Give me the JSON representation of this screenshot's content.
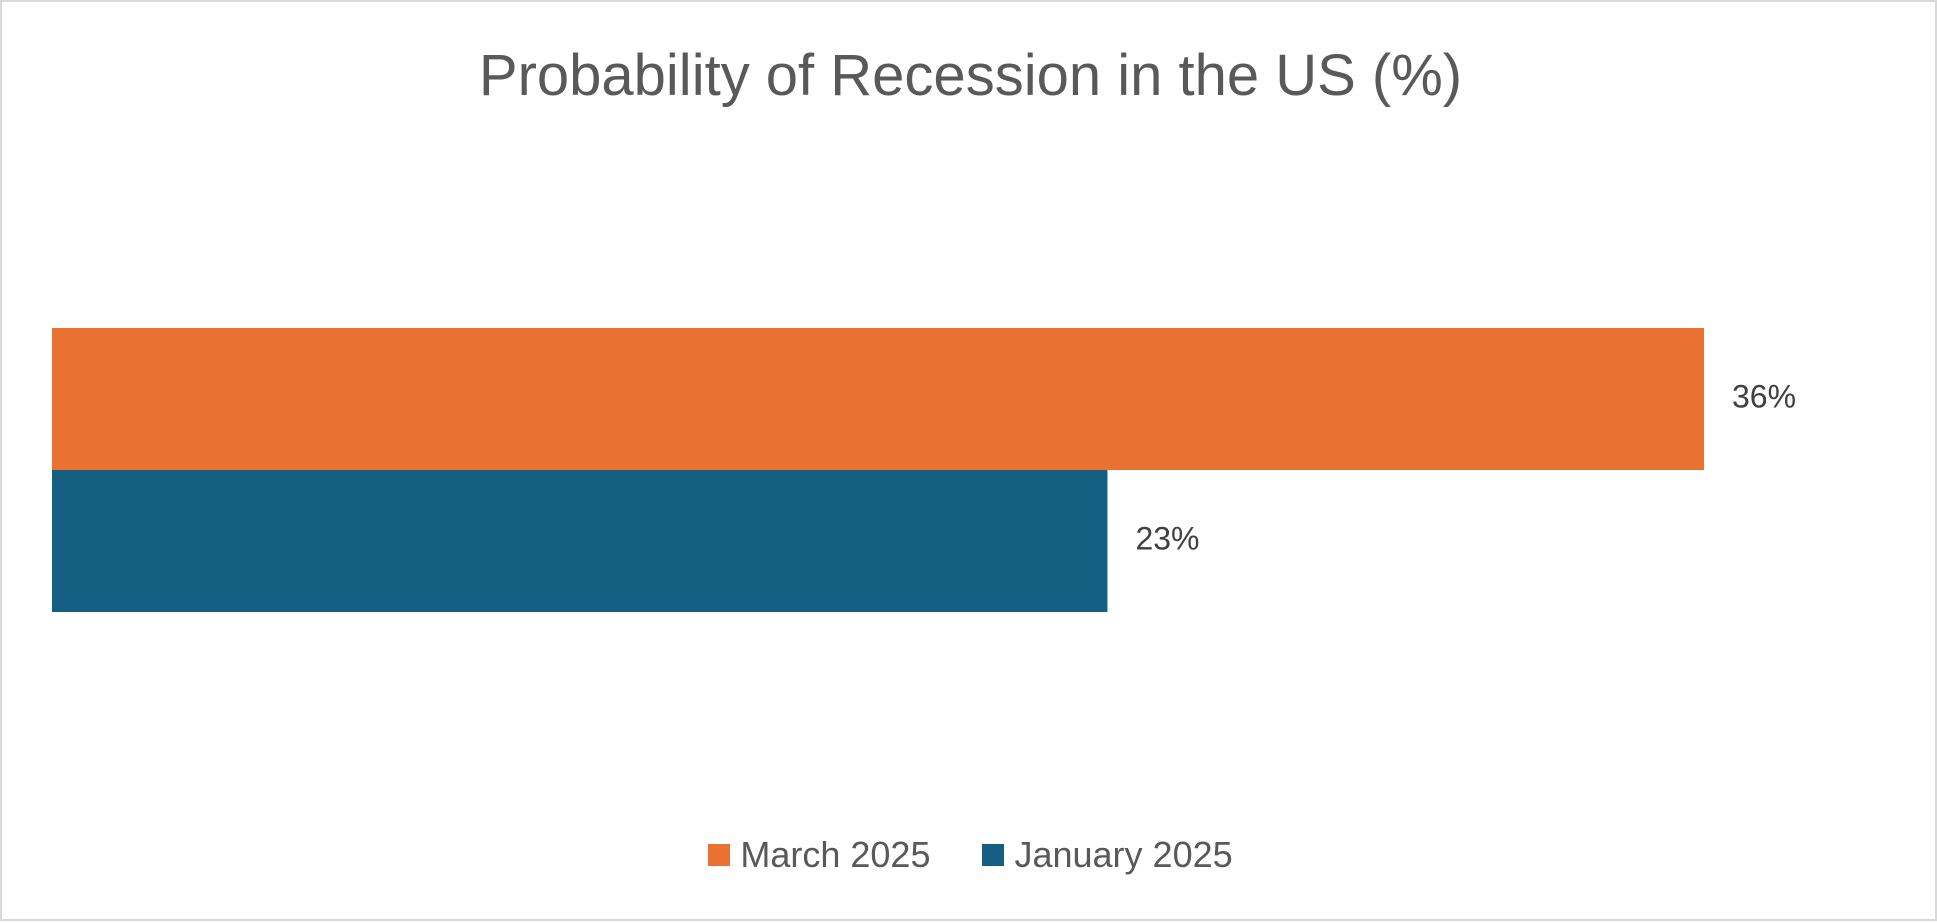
{
  "chart_data": {
    "type": "bar",
    "orientation": "horizontal",
    "title": "Probability of Recession in the US (%)",
    "xlabel": "",
    "ylabel": "",
    "categories": [
      ""
    ],
    "series": [
      {
        "name": "March 2025",
        "values": [
          36
        ],
        "labels": [
          "36%"
        ],
        "color": "#E97132"
      },
      {
        "name": "January 2025",
        "values": [
          23
        ],
        "labels": [
          "23%"
        ],
        "color": "#156082"
      }
    ],
    "xlim": [
      0,
      40
    ],
    "grid": false,
    "legend": "bottom"
  }
}
